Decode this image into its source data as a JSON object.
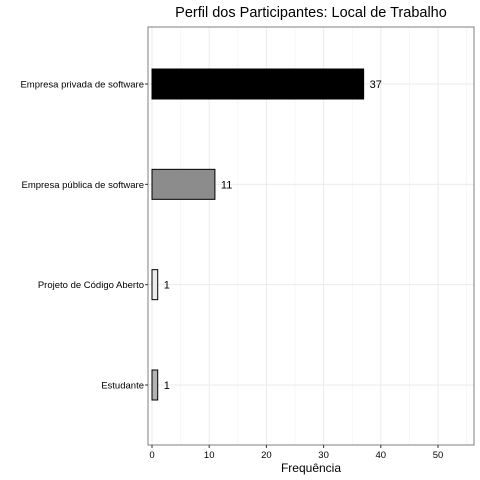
{
  "chart_data": {
    "type": "bar",
    "orientation": "horizontal",
    "title": "Perfil dos Participantes: Local de Trabalho",
    "xlabel": "Frequência",
    "ylabel": "",
    "categories": [
      "Empresa privada de software",
      "Empresa pública de software",
      "Projeto de Código Aberto",
      "Estudante"
    ],
    "values": [
      37,
      11,
      1,
      1
    ],
    "data_labels": [
      "37",
      "11",
      "1",
      "1"
    ],
    "colors": [
      "#000000",
      "#8c8c8c",
      "#ebebeb",
      "#b3b3b3"
    ],
    "xlim": [
      0,
      56
    ],
    "xticks": [
      0,
      10,
      20,
      30,
      40,
      50
    ],
    "xtick_labels": [
      "0",
      "10",
      "20",
      "30",
      "40",
      "50"
    ],
    "grid": true,
    "legend": "none"
  }
}
